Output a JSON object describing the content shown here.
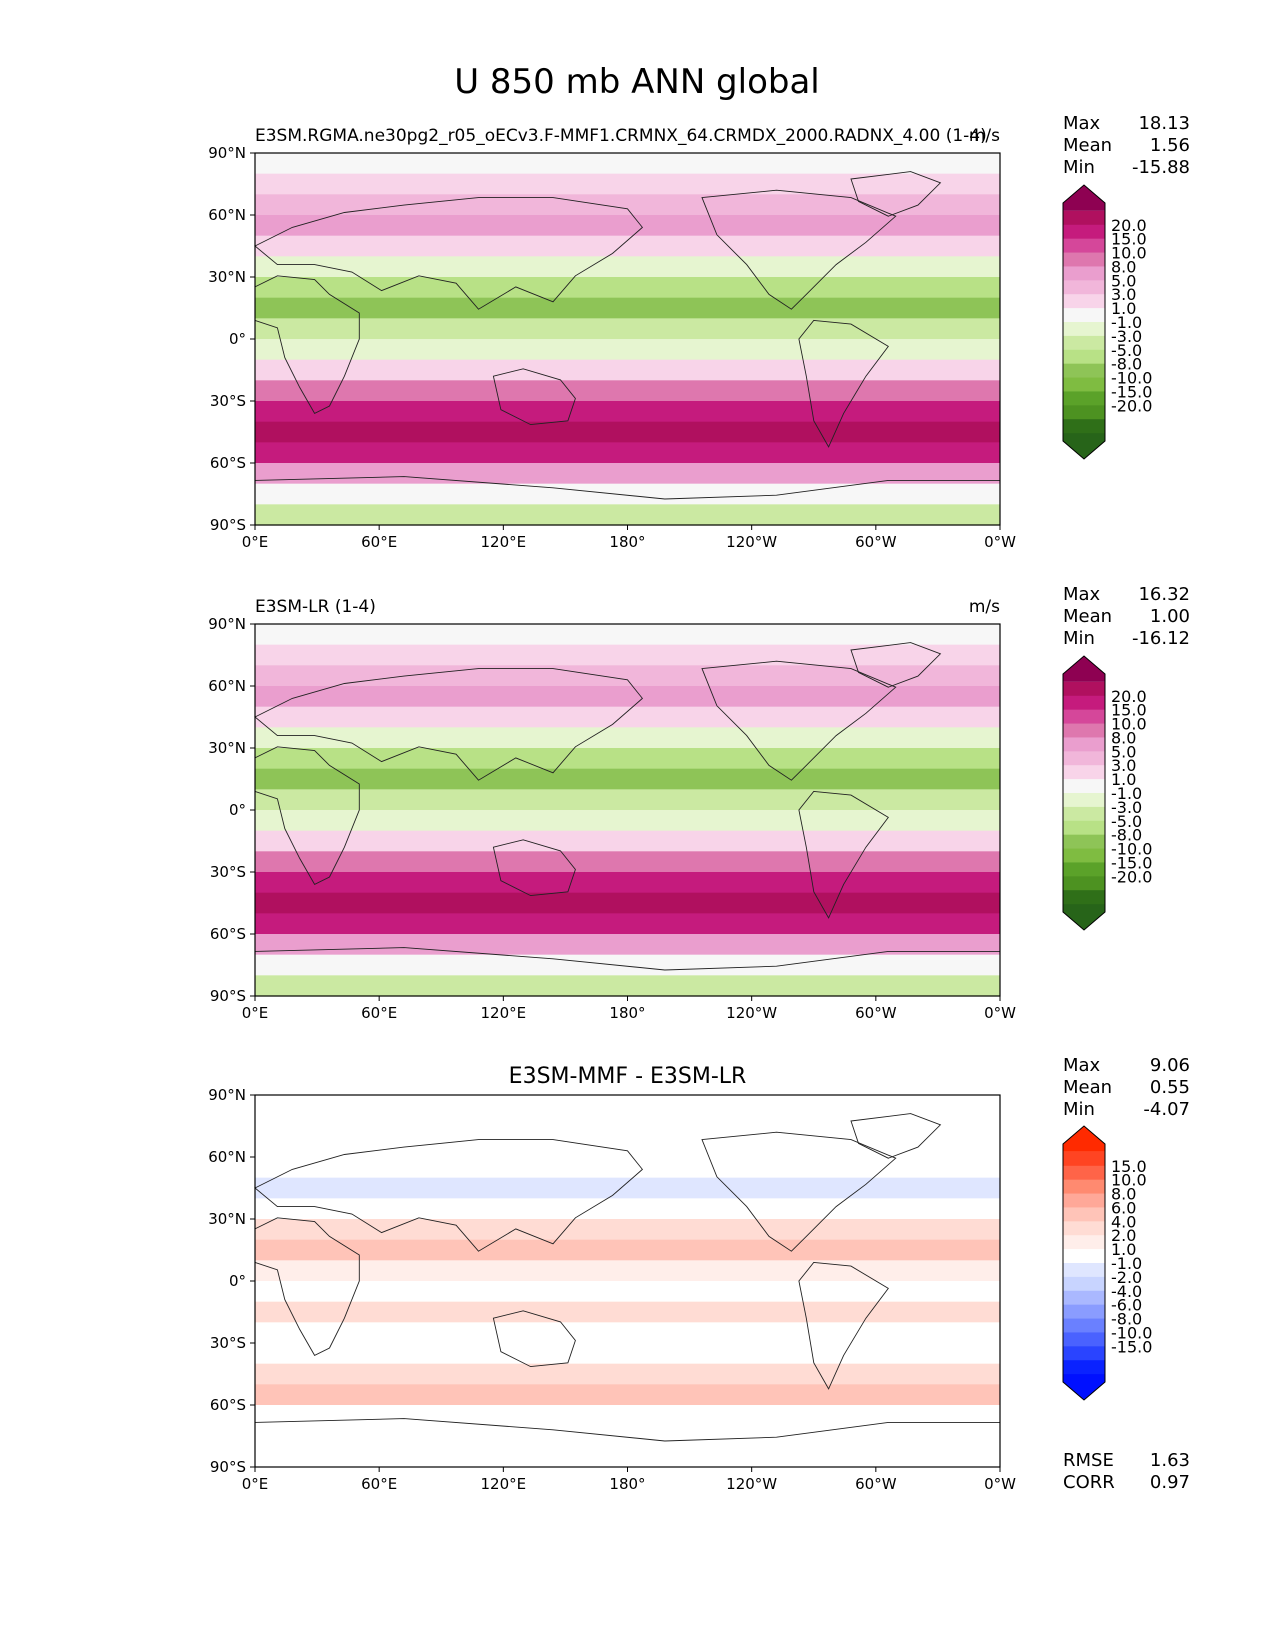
{
  "figure_title": "U 850 mb ANN global",
  "chart_data": [
    {
      "type": "heatmap",
      "title_left": "E3SM.RGMA.ne30pg2_r05_oECv3.F-MMF1.CRMNX_64.CRMDX_2000.RADNX_4.00 (1-4)",
      "units": "m/s",
      "stats": [
        {
          "label": "Max",
          "value": "18.13"
        },
        {
          "label": "Mean",
          "value": "1.56"
        },
        {
          "label": "Min",
          "value": "-15.88"
        }
      ],
      "colorbar": {
        "levels": [
          "20.0",
          "15.0",
          "10.0",
          "8.0",
          "5.0",
          "3.0",
          "1.0",
          "-1.0",
          "-3.0",
          "-5.0",
          "-8.0",
          "-10.0",
          "-15.0",
          "-20.0"
        ],
        "colors": [
          "#8e0152",
          "#b0105f",
          "#c51b7d",
          "#d5479a",
          "#de77ae",
          "#ea9ece",
          "#f1b6da",
          "#f8d4e9",
          "#f7f7f7",
          "#e6f5d0",
          "#cbe9a2",
          "#b8e186",
          "#8ec457",
          "#7fbc41",
          "#5ba229",
          "#4d9221",
          "#2f6f18",
          "#276419"
        ],
        "extend": "both"
      }
    },
    {
      "type": "heatmap",
      "title_left": "E3SM-LR (1-4)",
      "units": "m/s",
      "stats": [
        {
          "label": "Max",
          "value": "16.32"
        },
        {
          "label": "Mean",
          "value": "1.00"
        },
        {
          "label": "Min",
          "value": "-16.12"
        }
      ],
      "colorbar": {
        "levels": [
          "20.0",
          "15.0",
          "10.0",
          "8.0",
          "5.0",
          "3.0",
          "1.0",
          "-1.0",
          "-3.0",
          "-5.0",
          "-8.0",
          "-10.0",
          "-15.0",
          "-20.0"
        ],
        "colors": [
          "#8e0152",
          "#b0105f",
          "#c51b7d",
          "#d5479a",
          "#de77ae",
          "#ea9ece",
          "#f1b6da",
          "#f8d4e9",
          "#f7f7f7",
          "#e6f5d0",
          "#cbe9a2",
          "#b8e186",
          "#8ec457",
          "#7fbc41",
          "#5ba229",
          "#4d9221",
          "#2f6f18",
          "#276419"
        ],
        "extend": "both"
      }
    },
    {
      "type": "heatmap",
      "title_center": "E3SM-MMF - E3SM-LR",
      "stats": [
        {
          "label": "Max",
          "value": "9.06"
        },
        {
          "label": "Mean",
          "value": "0.55"
        },
        {
          "label": "Min",
          "value": "-4.07"
        }
      ],
      "metrics": [
        {
          "label": "RMSE",
          "value": "1.63"
        },
        {
          "label": "CORR",
          "value": "0.97"
        }
      ],
      "colorbar": {
        "levels": [
          "15.0",
          "10.0",
          "8.0",
          "6.0",
          "4.0",
          "2.0",
          "1.0",
          "-1.0",
          "-2.0",
          "-4.0",
          "-6.0",
          "-8.0",
          "-10.0",
          "-15.0"
        ],
        "colors": [
          "#ff2a00",
          "#ff4422",
          "#ff6448",
          "#ff8a70",
          "#ffa898",
          "#ffc4b8",
          "#ffdcd4",
          "#ffeeea",
          "#ffffff",
          "#dfe6ff",
          "#c8d4ff",
          "#aab8ff",
          "#8a9cff",
          "#6a80ff",
          "#4a62ff",
          "#2a44ff",
          "#0a22ff",
          "#0010ff"
        ],
        "extend": "both"
      }
    }
  ],
  "axes": {
    "xticks": [
      "0°E",
      "60°E",
      "120°E",
      "180°",
      "120°W",
      "60°W",
      "0°W"
    ],
    "yticks": [
      "90°N",
      "60°N",
      "30°N",
      "0°",
      "30°S",
      "60°S",
      "90°S"
    ],
    "lon_range": [
      0,
      360
    ],
    "lat_range": [
      -90,
      90
    ]
  }
}
